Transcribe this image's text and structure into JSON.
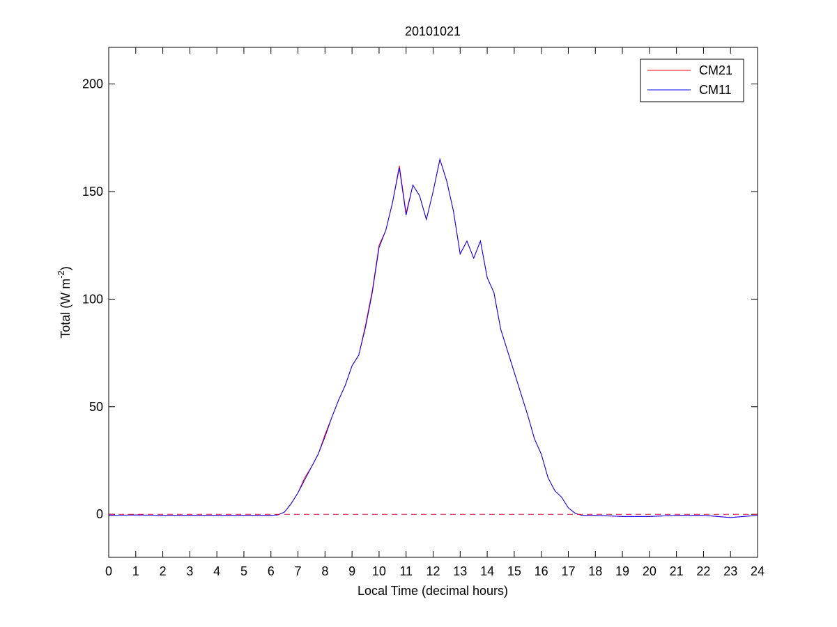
{
  "chart_data": {
    "type": "line",
    "title": "20101021",
    "x_label": "Local Time (decimal hours)",
    "y_label": [
      "Total (W m",
      "-2",
      ")"
    ],
    "x": [
      0,
      1,
      2,
      3,
      4,
      5,
      6,
      6.25,
      6.5,
      6.75,
      7,
      7.25,
      7.5,
      7.75,
      8,
      8.25,
      8.5,
      8.75,
      9,
      9.25,
      9.5,
      9.75,
      10,
      10.25,
      10.5,
      10.75,
      11,
      11.25,
      11.5,
      11.75,
      12,
      12.25,
      12.5,
      12.75,
      13,
      13.25,
      13.5,
      13.75,
      14,
      14.25,
      14.5,
      14.75,
      15,
      15.25,
      15.5,
      15.75,
      16,
      16.25,
      16.5,
      16.75,
      17,
      17.25,
      17.5,
      18,
      19,
      20,
      21,
      22,
      23,
      24
    ],
    "series": [
      {
        "name": "CM21",
        "color": "#ff0000",
        "values": [
          -0.5,
          -0.3,
          -0.5,
          -0.5,
          -0.5,
          -0.5,
          -0.5,
          -0.3,
          1,
          5,
          10,
          17,
          22,
          28,
          37,
          45,
          53,
          60,
          69,
          74,
          88,
          104,
          125,
          132,
          145,
          162,
          140,
          153,
          148,
          137,
          150,
          165,
          155,
          141,
          121,
          127,
          119,
          127,
          110,
          103,
          86,
          76,
          66,
          56,
          46,
          35,
          28,
          17,
          11,
          8,
          3,
          0.5,
          -0.5,
          -0.5,
          -1,
          -1,
          -0.5,
          -0.5,
          -1.5,
          -0.5
        ]
      },
      {
        "name": "CM11",
        "color": "#0000ff",
        "values": [
          -0.5,
          -0.3,
          -0.5,
          -0.5,
          -0.5,
          -0.5,
          -0.5,
          -0.3,
          1,
          5,
          10,
          16,
          22,
          28,
          36,
          45,
          53,
          60,
          69,
          74,
          87,
          103,
          124,
          132,
          145,
          161,
          139,
          153,
          148,
          137,
          150,
          165,
          155,
          141,
          121,
          127,
          119,
          127,
          110,
          103,
          86,
          76,
          66,
          56,
          46,
          35,
          28,
          17,
          11,
          8,
          3,
          0.5,
          -0.5,
          -0.5,
          -1,
          -1,
          -0.5,
          -0.5,
          -1.5,
          -0.5
        ]
      }
    ],
    "reference_line": {
      "value": 0,
      "color": "#dc143c",
      "style": "dashed"
    },
    "xlim": [
      0,
      24
    ],
    "xticks": [
      0,
      1,
      2,
      3,
      4,
      5,
      6,
      7,
      8,
      9,
      10,
      11,
      12,
      13,
      14,
      15,
      16,
      17,
      18,
      19,
      20,
      21,
      22,
      23,
      24
    ],
    "ylim": [
      -20,
      217
    ],
    "yticks": [
      0,
      50,
      100,
      150,
      200
    ],
    "grid": false,
    "legend": "top-right"
  }
}
